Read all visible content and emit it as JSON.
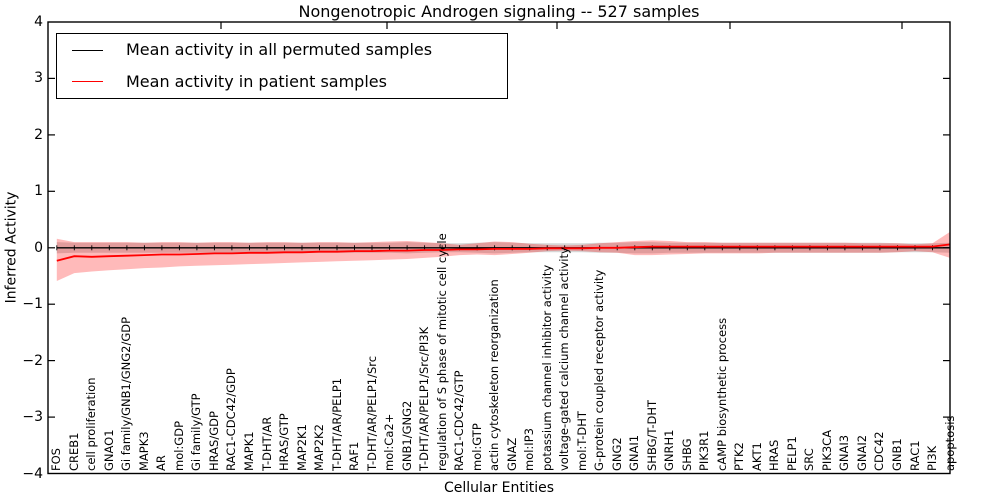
{
  "title": "Nongenotropic Androgen signaling -- 527 samples",
  "axes": {
    "ylabel": "Inferred Activity",
    "xlabel": "Cellular Entities",
    "yticks": [
      "4",
      "3",
      "2",
      "1",
      "0",
      "−1",
      "−2",
      "−3",
      "−4"
    ],
    "ytick_values": [
      4,
      3,
      2,
      1,
      0,
      -1,
      -2,
      -3,
      -4
    ]
  },
  "legend": {
    "items": [
      {
        "label": "Mean activity in all permuted samples",
        "color": "#000000"
      },
      {
        "label": "Mean activity in patient samples",
        "color": "#ff0000"
      }
    ]
  },
  "colors": {
    "permuted_line": "#000000",
    "patient_line": "#ff0000",
    "permuted_band": "#000000",
    "patient_band": "#ff0000",
    "spine": "#000000"
  },
  "chart_data": {
    "type": "line",
    "title": "Nongenotropic Androgen signaling -- 527 samples",
    "xlabel": "Cellular Entities",
    "ylabel": "Inferred Activity",
    "ylim": [
      -4,
      4
    ],
    "grid": false,
    "legend_position": "upper left",
    "categories": [
      "FOS",
      "CREB1",
      "cell proliferation",
      "GNAO1",
      "Gi family/GNB1/GNG2/GDP",
      "MAPK3",
      "AR",
      "mol:GDP",
      "Gi family/GTP",
      "HRAS/GDP",
      "RAC1-CDC42/GDP",
      "MAPK1",
      "T-DHT/AR",
      "HRAS/GTP",
      "MAP2K1",
      "MAP2K2",
      "T-DHT/AR/PELP1",
      "RAF1",
      "T-DHT/AR/PELP1/Src",
      "mol:Ca2+",
      "GNB1/GNG2",
      "T-DHT/AR/PELP1/Src/PI3K",
      "regulation of S phase of mitotic cell cycle",
      "RAC1-CDC42/GTP",
      "mol:GTP",
      "actin cytoskeleton reorganization",
      "GNAZ",
      "mol:IP3",
      "potassium channel inhibitor activity",
      "voltage-gated calcium channel activity",
      "mol:T-DHT",
      "G-protein coupled receptor activity",
      "GNG2",
      "GNAI1",
      "SHBG/T-DHT",
      "GNRH1",
      "SHBG",
      "PIK3R1",
      "cAMP biosynthetic process",
      "PTK2",
      "AKT1",
      "HRAS",
      "PELP1",
      "SRC",
      "PIK3CA",
      "GNAI3",
      "GNAI2",
      "CDC42",
      "GNB1",
      "RAC1",
      "PI3K",
      "apoptosis"
    ],
    "series": [
      {
        "name": "Mean activity in all permuted samples",
        "color": "#000000",
        "values": [
          0,
          0,
          0,
          0,
          0,
          0,
          0,
          0,
          0,
          0,
          0,
          0,
          0,
          0,
          0,
          0,
          0,
          0,
          0,
          0,
          0,
          0,
          0,
          0,
          0,
          0,
          0,
          0,
          0,
          0,
          0,
          0,
          0,
          0,
          0,
          0,
          0,
          0,
          0,
          0,
          0,
          0,
          0,
          0,
          0,
          0,
          0,
          0,
          0,
          0,
          0,
          0
        ]
      },
      {
        "name": "Mean activity in patient samples",
        "color": "#ff0000",
        "values": [
          -0.23,
          -0.15,
          -0.16,
          -0.15,
          -0.14,
          -0.13,
          -0.12,
          -0.12,
          -0.11,
          -0.1,
          -0.1,
          -0.09,
          -0.09,
          -0.08,
          -0.08,
          -0.07,
          -0.07,
          -0.06,
          -0.06,
          -0.05,
          -0.05,
          -0.04,
          -0.04,
          -0.03,
          -0.03,
          -0.02,
          -0.02,
          -0.02,
          -0.01,
          -0.01,
          -0.01,
          0.0,
          0.0,
          0.01,
          0.02,
          0.02,
          0.02,
          0.02,
          0.02,
          0.02,
          0.02,
          0.02,
          0.02,
          0.02,
          0.02,
          0.02,
          0.02,
          0.02,
          0.02,
          0.02,
          0.02,
          0.06
        ]
      }
    ],
    "bands": [
      {
        "name": "permuted samples spread",
        "color": "#000000",
        "opacity": 0.16,
        "upper": [
          0.1,
          0.09,
          0.09,
          0.09,
          0.09,
          0.09,
          0.09,
          0.09,
          0.09,
          0.09,
          0.09,
          0.09,
          0.09,
          0.09,
          0.09,
          0.09,
          0.09,
          0.09,
          0.09,
          0.09,
          0.1,
          0.09,
          0.08,
          0.08,
          0.09,
          0.1,
          0.09,
          0.08,
          0.08,
          0.08,
          0.08,
          0.09,
          0.09,
          0.1,
          0.1,
          0.09,
          0.09,
          0.09,
          0.09,
          0.09,
          0.09,
          0.09,
          0.09,
          0.09,
          0.09,
          0.09,
          0.09,
          0.09,
          0.08,
          0.08,
          0.08,
          0.09
        ],
        "lower": [
          -0.1,
          -0.09,
          -0.09,
          -0.09,
          -0.09,
          -0.09,
          -0.09,
          -0.09,
          -0.09,
          -0.09,
          -0.09,
          -0.09,
          -0.09,
          -0.09,
          -0.09,
          -0.09,
          -0.09,
          -0.09,
          -0.09,
          -0.09,
          -0.1,
          -0.09,
          -0.08,
          -0.08,
          -0.09,
          -0.1,
          -0.09,
          -0.08,
          -0.08,
          -0.08,
          -0.08,
          -0.09,
          -0.09,
          -0.1,
          -0.1,
          -0.09,
          -0.09,
          -0.09,
          -0.09,
          -0.09,
          -0.09,
          -0.09,
          -0.09,
          -0.09,
          -0.09,
          -0.09,
          -0.09,
          -0.09,
          -0.08,
          -0.08,
          -0.08,
          -0.09
        ]
      },
      {
        "name": "patient samples spread",
        "color": "#ff0000",
        "opacity": 0.27,
        "upper": [
          0.16,
          0.1,
          0.1,
          0.1,
          0.1,
          0.09,
          0.1,
          0.1,
          0.09,
          0.1,
          0.1,
          0.09,
          0.1,
          0.1,
          0.09,
          0.1,
          0.1,
          0.09,
          0.1,
          0.11,
          0.12,
          0.1,
          0.08,
          0.05,
          0.08,
          0.11,
          0.1,
          0.07,
          0.05,
          0.04,
          0.05,
          0.08,
          0.1,
          0.12,
          0.13,
          0.12,
          0.1,
          0.1,
          0.09,
          0.09,
          0.09,
          0.09,
          0.09,
          0.09,
          0.09,
          0.09,
          0.08,
          0.08,
          0.08,
          0.06,
          0.08,
          0.28
        ],
        "lower": [
          -0.59,
          -0.45,
          -0.42,
          -0.4,
          -0.38,
          -0.36,
          -0.35,
          -0.33,
          -0.32,
          -0.31,
          -0.3,
          -0.29,
          -0.28,
          -0.27,
          -0.26,
          -0.25,
          -0.24,
          -0.23,
          -0.22,
          -0.21,
          -0.2,
          -0.18,
          -0.16,
          -0.13,
          -0.12,
          -0.13,
          -0.11,
          -0.09,
          -0.06,
          -0.05,
          -0.06,
          -0.08,
          -0.09,
          -0.13,
          -0.13,
          -0.12,
          -0.11,
          -0.1,
          -0.1,
          -0.1,
          -0.1,
          -0.09,
          -0.09,
          -0.09,
          -0.09,
          -0.09,
          -0.09,
          -0.09,
          -0.08,
          -0.06,
          -0.08,
          -0.18
        ]
      }
    ]
  }
}
